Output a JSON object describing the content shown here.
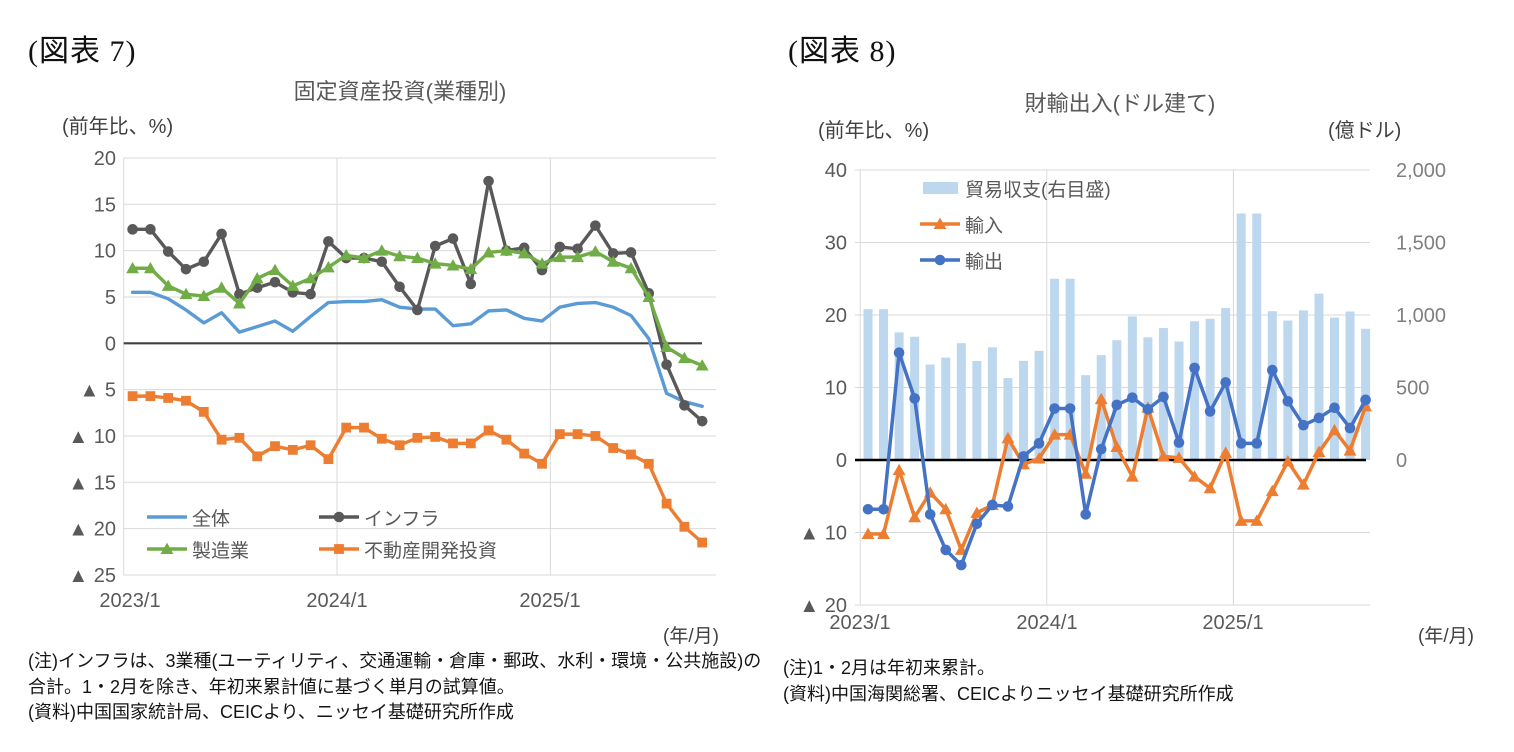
{
  "figure7": {
    "header": "(図表 7)",
    "notes": [
      "(注)インフラは、3業種(ユーティリティ、交通運輸・倉庫・郵政、水利・環境・公共施設)の",
      "合計。1・2月を除き、年初来累計値に基づく単月の試算値。",
      "(資料)中国国家統計局、CEICより、ニッセイ基礎研究所作成"
    ]
  },
  "figure8": {
    "header": "(図表 8)",
    "notes": [
      "(注)1・2月は年初来累計。",
      "(資料)中国海関総署、CEICよりニッセイ基礎研究所作成"
    ]
  },
  "chart_data": [
    {
      "id": "fixed-asset-investment",
      "type": "line",
      "title": "固定資産投資(業種別)",
      "y_axis_label": "(前年比、%)",
      "x_axis_label": "(年/月)",
      "ylim": [
        -25,
        20
      ],
      "grid": true,
      "legend_position": "inside-bottom-left",
      "y_tick_values": [
        20,
        15,
        10,
        5,
        0,
        -5,
        -10,
        -15,
        -20,
        -25
      ],
      "y_tick_labels": [
        "20",
        "15",
        "10",
        "5",
        "0",
        "▲ 5",
        "▲ 10",
        "▲ 15",
        "▲ 20",
        "▲ 25"
      ],
      "x_tick_labels": [
        "2023/1",
        "2024/1",
        "2025/1"
      ],
      "categories": [
        "2023/1",
        "2023/2",
        "2023/3",
        "2023/4",
        "2023/5",
        "2023/6",
        "2023/7",
        "2023/8",
        "2023/9",
        "2023/10",
        "2023/11",
        "2023/12",
        "2024/1",
        "2024/2",
        "2024/3",
        "2024/4",
        "2024/5",
        "2024/6",
        "2024/7",
        "2024/8",
        "2024/9",
        "2024/10",
        "2024/11",
        "2024/12",
        "2025/1",
        "2025/2",
        "2025/3",
        "2025/4",
        "2025/5",
        "2025/6",
        "2025/7",
        "2025/8",
        "2025/9"
      ],
      "series": [
        {
          "id": "total",
          "name": "全体",
          "color": "#5B9BD5",
          "marker": "none",
          "values": [
            5.5,
            5.5,
            4.8,
            3.6,
            2.2,
            3.3,
            1.2,
            1.8,
            2.4,
            1.3,
            2.9,
            4.4,
            4.5,
            4.5,
            4.7,
            3.9,
            3.7,
            3.7,
            1.9,
            2.1,
            3.5,
            3.6,
            2.7,
            2.4,
            3.9,
            4.3,
            4.4,
            3.9,
            3.0,
            0.5,
            -5.4,
            -6.3,
            -6.8
          ]
        },
        {
          "id": "infrastructure",
          "name": "インフラ",
          "color": "#595959",
          "marker": "circle",
          "values": [
            12.3,
            12.3,
            9.9,
            8.0,
            8.8,
            11.8,
            5.3,
            6.0,
            6.6,
            5.5,
            5.3,
            11.0,
            9.2,
            9.2,
            8.8,
            6.1,
            3.6,
            10.5,
            11.3,
            6.4,
            17.5,
            10.0,
            10.3,
            7.9,
            10.4,
            10.2,
            12.7,
            9.7,
            9.8,
            5.4,
            -2.3,
            -6.7,
            -8.4
          ]
        },
        {
          "id": "manufacturing",
          "name": "製造業",
          "color": "#70AD47",
          "marker": "triangle",
          "values": [
            8.1,
            8.1,
            6.2,
            5.3,
            5.1,
            6.0,
            4.3,
            7.0,
            7.9,
            6.2,
            7.0,
            8.2,
            9.5,
            9.2,
            10.0,
            9.4,
            9.2,
            8.6,
            8.4,
            8.0,
            9.8,
            10.0,
            9.7,
            8.6,
            9.3,
            9.3,
            9.9,
            8.8,
            8.1,
            5.0,
            -0.4,
            -1.6,
            -2.4
          ]
        },
        {
          "id": "real-estate-development",
          "name": "不動産開発投資",
          "color": "#ED7D31",
          "marker": "square",
          "values": [
            -5.7,
            -5.7,
            -5.9,
            -6.2,
            -7.4,
            -10.4,
            -10.2,
            -12.2,
            -11.1,
            -11.5,
            -11.0,
            -12.5,
            -9.1,
            -9.1,
            -10.3,
            -11.0,
            -10.2,
            -10.1,
            -10.8,
            -10.8,
            -9.4,
            -10.4,
            -11.9,
            -13.0,
            -9.8,
            -9.8,
            -10.0,
            -11.3,
            -12.0,
            -13.0,
            -17.3,
            -19.8,
            -21.5
          ]
        }
      ]
    },
    {
      "id": "goods-trade",
      "type": "bar+line",
      "title": "財輸出入(ドル建て)",
      "y_left_label": "(前年比、%)",
      "y_right_label": "(億ドル)",
      "x_axis_label": "(年/月)",
      "ylim_left": [
        -20,
        40
      ],
      "ylim_right": [
        0,
        2000
      ],
      "grid": true,
      "legend_position": "inside-top-left",
      "y_left_tick_values": [
        40,
        30,
        20,
        10,
        0,
        -10,
        -20
      ],
      "y_left_tick_labels": [
        "40",
        "30",
        "20",
        "10",
        "0",
        "▲ 10",
        "▲ 20"
      ],
      "y_right_tick_values": [
        2000,
        1500,
        1000,
        500,
        0
      ],
      "y_right_tick_labels": [
        "2,000",
        "1,500",
        "1,000",
        "500",
        "0"
      ],
      "x_tick_labels": [
        "2023/1",
        "2024/1",
        "2025/1"
      ],
      "categories": [
        "2023/1",
        "2023/2",
        "2023/3",
        "2023/4",
        "2023/5",
        "2023/6",
        "2023/7",
        "2023/8",
        "2023/9",
        "2023/10",
        "2023/11",
        "2023/12",
        "2024/1",
        "2024/2",
        "2024/3",
        "2024/4",
        "2024/5",
        "2024/6",
        "2024/7",
        "2024/8",
        "2024/9",
        "2024/10",
        "2024/11",
        "2024/12",
        "2025/1",
        "2025/2",
        "2025/3",
        "2025/4",
        "2025/5",
        "2025/6",
        "2025/7",
        "2025/8",
        "2025/9"
      ],
      "bar_series": {
        "id": "trade-balance",
        "name": "貿易収支(右目盛)",
        "color": "#BDD7EE",
        "axis": "right",
        "values": [
          1040,
          1040,
          880,
          850,
          658,
          706,
          806,
          683,
          777,
          565,
          684,
          753,
          1250,
          1250,
          585,
          723,
          826,
          990,
          846,
          910,
          817,
          957,
          974,
          1048,
          1700,
          1700,
          1026,
          962,
          1032,
          1147,
          982,
          1024,
          905
        ]
      },
      "line_series": [
        {
          "id": "imports",
          "name": "輸入",
          "color": "#ED7D31",
          "marker": "triangle",
          "values": [
            -10.2,
            -10.2,
            -1.4,
            -7.9,
            -4.5,
            -6.8,
            -12.4,
            -7.3,
            -6.2,
            3.0,
            -0.6,
            0.2,
            3.5,
            3.5,
            -1.9,
            8.4,
            1.8,
            -2.3,
            7.2,
            0.5,
            0.3,
            -2.3,
            -3.9,
            1.0,
            -8.4,
            -8.4,
            -4.3,
            -0.2,
            -3.4,
            1.1,
            4.1,
            1.3,
            7.4
          ]
        },
        {
          "id": "exports",
          "name": "輸出",
          "color": "#4472C4",
          "marker": "circle",
          "values": [
            -6.8,
            -6.8,
            14.8,
            8.5,
            -7.5,
            -12.4,
            -14.5,
            -8.8,
            -6.2,
            -6.4,
            0.5,
            2.3,
            7.1,
            7.1,
            -7.5,
            1.5,
            7.6,
            8.6,
            7.0,
            8.7,
            2.4,
            12.7,
            6.7,
            10.7,
            2.3,
            2.3,
            12.4,
            8.1,
            4.8,
            5.8,
            7.2,
            4.4,
            8.3
          ]
        }
      ]
    }
  ]
}
